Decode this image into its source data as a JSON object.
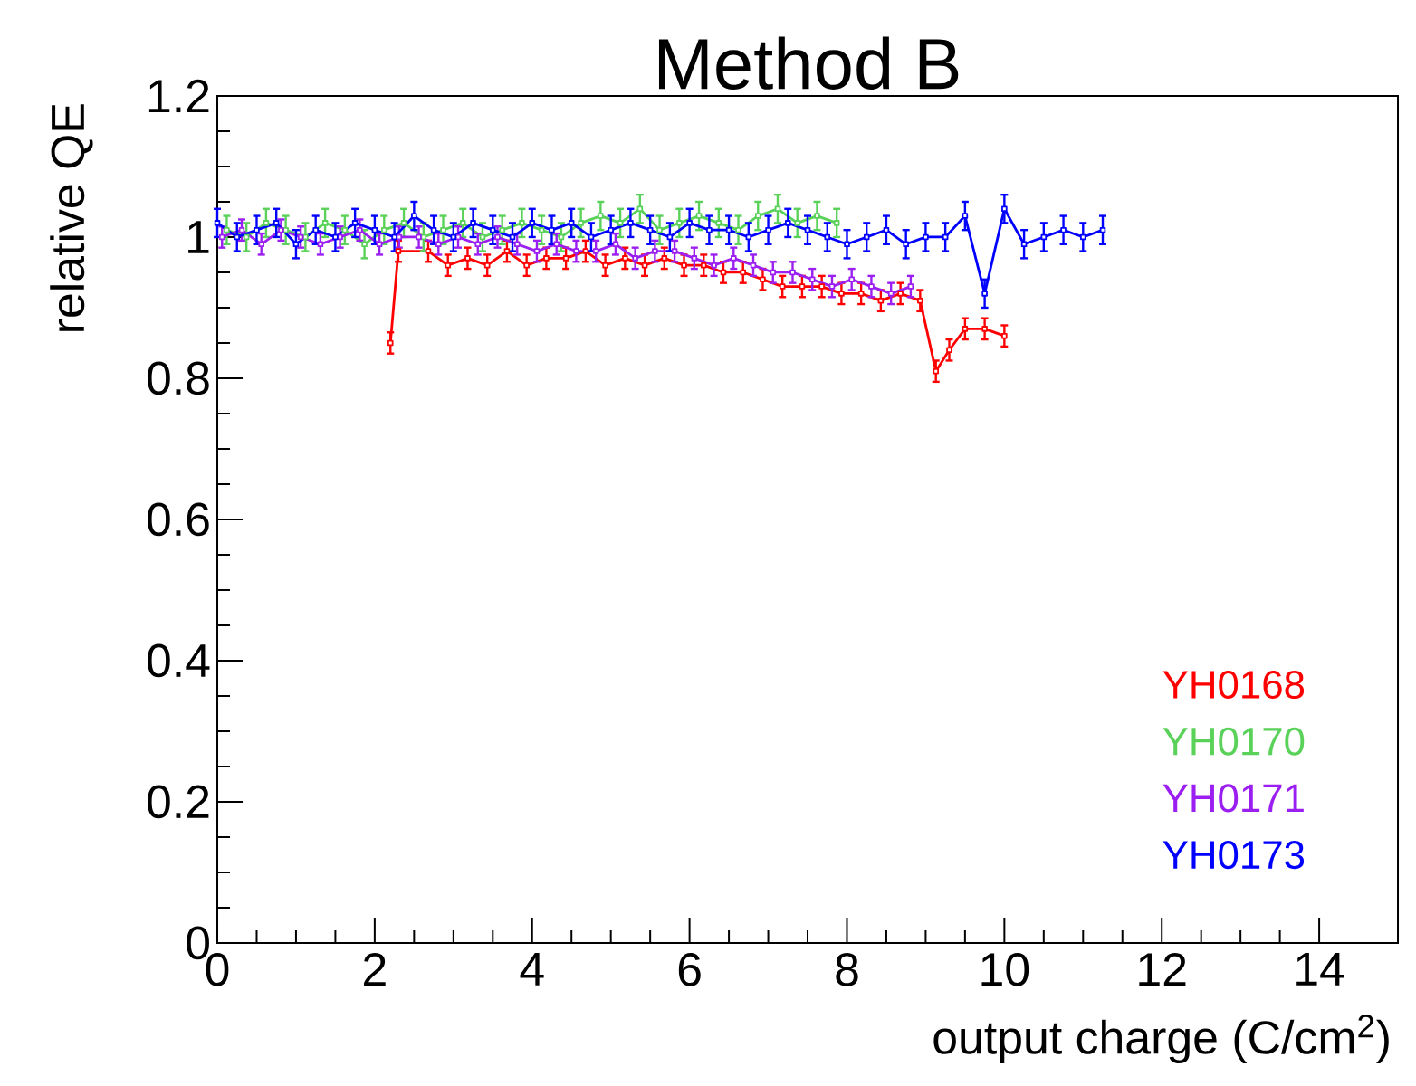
{
  "chart_data": {
    "type": "line",
    "title": "Method B",
    "xlabel": "output charge (C/cm$^{2}$)",
    "ylabel": "relative QE",
    "xlim": [
      0,
      15
    ],
    "xticks": [
      0,
      2,
      4,
      6,
      8,
      10,
      12,
      14
    ],
    "ylim": [
      0,
      1.2
    ],
    "yticks": [
      0,
      0.2,
      0.4,
      0.6,
      0.8,
      1,
      1.2
    ],
    "legend": "bottom right",
    "marker": "square",
    "series": [
      {
        "name": "YH0168",
        "color": "#ff0000",
        "x": [
          2.2,
          2.3,
          2.68,
          2.93,
          3.18,
          3.43,
          3.68,
          3.93,
          4.18,
          4.43,
          4.68,
          4.93,
          5.18,
          5.43,
          5.68,
          5.93,
          6.18,
          6.43,
          6.68,
          6.93,
          7.18,
          7.43,
          7.68,
          7.93,
          8.18,
          8.43,
          8.68,
          8.93,
          9.13,
          9.3,
          9.5,
          9.75,
          10.0
        ],
        "values": [
          0.85,
          0.98,
          0.98,
          0.96,
          0.97,
          0.96,
          0.98,
          0.96,
          0.97,
          0.97,
          0.98,
          0.96,
          0.97,
          0.96,
          0.97,
          0.96,
          0.96,
          0.95,
          0.95,
          0.94,
          0.93,
          0.93,
          0.93,
          0.92,
          0.92,
          0.91,
          0.92,
          0.91,
          0.81,
          0.84,
          0.87,
          0.87,
          0.86
        ],
        "errors": [
          0.015,
          0.015,
          0.015,
          0.015,
          0.015,
          0.015,
          0.015,
          0.015,
          0.015,
          0.015,
          0.015,
          0.015,
          0.015,
          0.015,
          0.015,
          0.015,
          0.015,
          0.015,
          0.015,
          0.015,
          0.015,
          0.015,
          0.015,
          0.015,
          0.015,
          0.015,
          0.015,
          0.015,
          0.015,
          0.015,
          0.015,
          0.015,
          0.015
        ]
      },
      {
        "name": "YH0170",
        "color": "#5ad25a",
        "x": [
          0.12,
          0.37,
          0.62,
          0.87,
          1.12,
          1.37,
          1.62,
          1.87,
          2.12,
          2.37,
          2.62,
          2.87,
          3.12,
          3.37,
          3.62,
          3.87,
          4.12,
          4.37,
          4.62,
          4.87,
          5.12,
          5.37,
          5.62,
          5.87,
          6.12,
          6.37,
          6.62,
          6.87,
          7.12,
          7.37,
          7.62,
          7.87
        ],
        "values": [
          1.01,
          1.0,
          1.02,
          1.01,
          1.0,
          1.02,
          1.01,
          0.99,
          1.01,
          1.02,
          1.0,
          1.01,
          1.02,
          1.0,
          1.01,
          1.02,
          1.01,
          1.0,
          1.02,
          1.03,
          1.02,
          1.04,
          1.01,
          1.02,
          1.03,
          1.02,
          1.01,
          1.03,
          1.04,
          1.02,
          1.03,
          1.02
        ],
        "errors": [
          0.02,
          0.02,
          0.02,
          0.02,
          0.02,
          0.02,
          0.02,
          0.02,
          0.02,
          0.02,
          0.02,
          0.02,
          0.02,
          0.02,
          0.02,
          0.02,
          0.02,
          0.02,
          0.02,
          0.02,
          0.02,
          0.02,
          0.02,
          0.02,
          0.02,
          0.02,
          0.02,
          0.02,
          0.02,
          0.02,
          0.02,
          0.02
        ]
      },
      {
        "name": "YH0171",
        "color": "#9b1ff0",
        "x": [
          0.06,
          0.31,
          0.56,
          0.81,
          1.06,
          1.31,
          1.56,
          1.81,
          2.06,
          2.31,
          2.56,
          2.81,
          3.06,
          3.31,
          3.56,
          3.81,
          4.06,
          4.31,
          4.56,
          4.81,
          5.06,
          5.31,
          5.56,
          5.81,
          6.06,
          6.31,
          6.56,
          6.81,
          7.06,
          7.31,
          7.56,
          7.81,
          8.06,
          8.31,
          8.56,
          8.81
        ],
        "values": [
          1.0,
          1.01,
          0.99,
          1.01,
          1.0,
          0.99,
          1.0,
          1.01,
          0.99,
          1.0,
          1.0,
          0.99,
          1.0,
          0.99,
          1.0,
          0.99,
          0.98,
          0.99,
          0.98,
          0.98,
          0.99,
          0.97,
          0.98,
          0.98,
          0.97,
          0.96,
          0.97,
          0.96,
          0.95,
          0.95,
          0.94,
          0.93,
          0.94,
          0.93,
          0.92,
          0.93
        ],
        "errors": [
          0.015,
          0.015,
          0.015,
          0.015,
          0.015,
          0.015,
          0.015,
          0.015,
          0.015,
          0.015,
          0.015,
          0.015,
          0.015,
          0.015,
          0.015,
          0.015,
          0.015,
          0.015,
          0.015,
          0.015,
          0.015,
          0.015,
          0.015,
          0.015,
          0.015,
          0.015,
          0.015,
          0.015,
          0.015,
          0.015,
          0.015,
          0.015,
          0.015,
          0.015,
          0.015,
          0.015
        ]
      },
      {
        "name": "YH0173",
        "color": "#0000ff",
        "x": [
          0,
          0.25,
          0.5,
          0.75,
          1.0,
          1.25,
          1.5,
          1.75,
          2.0,
          2.25,
          2.5,
          2.75,
          3.0,
          3.25,
          3.5,
          3.75,
          4.0,
          4.25,
          4.5,
          4.75,
          5.0,
          5.25,
          5.5,
          5.75,
          6.0,
          6.25,
          6.5,
          6.75,
          7.0,
          7.25,
          7.5,
          7.75,
          8.0,
          8.25,
          8.5,
          8.75,
          9.0,
          9.25,
          9.5,
          9.75,
          10.0,
          10.25,
          10.5,
          10.75,
          11.0,
          11.25
        ],
        "values": [
          1.02,
          1.0,
          1.01,
          1.02,
          0.99,
          1.01,
          1.0,
          1.02,
          1.01,
          1.0,
          1.03,
          1.01,
          1.0,
          1.02,
          1.01,
          1.0,
          1.02,
          1.01,
          1.02,
          1.0,
          1.01,
          1.02,
          1.01,
          1.0,
          1.02,
          1.01,
          1.01,
          1.0,
          1.01,
          1.02,
          1.01,
          1.0,
          0.99,
          1.0,
          1.01,
          0.99,
          1.0,
          1.0,
          1.03,
          0.92,
          1.04,
          0.99,
          1.0,
          1.01,
          1.0,
          1.01
        ],
        "errors": [
          0.02,
          0.02,
          0.02,
          0.02,
          0.02,
          0.02,
          0.02,
          0.02,
          0.02,
          0.02,
          0.02,
          0.02,
          0.02,
          0.02,
          0.02,
          0.02,
          0.02,
          0.02,
          0.02,
          0.02,
          0.02,
          0.02,
          0.02,
          0.02,
          0.02,
          0.02,
          0.02,
          0.02,
          0.02,
          0.02,
          0.02,
          0.02,
          0.02,
          0.02,
          0.02,
          0.02,
          0.02,
          0.02,
          0.02,
          0.02,
          0.02,
          0.02,
          0.02,
          0.02,
          0.02,
          0.02
        ]
      }
    ]
  }
}
